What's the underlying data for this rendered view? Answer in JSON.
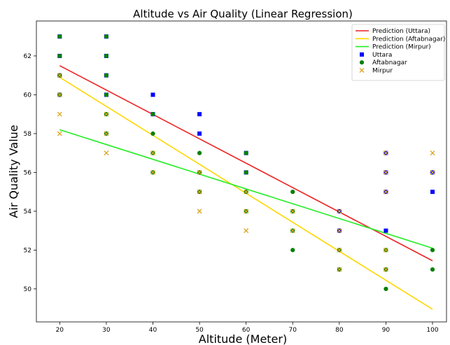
{
  "chart_data": {
    "type": "scatter",
    "title": "Altitude vs Air Quality (Linear Regression)",
    "xlabel": "Altitude (Meter)",
    "ylabel": "Air Quality Value",
    "xlim": [
      15,
      103
    ],
    "ylim": [
      48.3,
      63.8
    ],
    "x_ticks": [
      20,
      30,
      40,
      50,
      60,
      70,
      80,
      90,
      100
    ],
    "y_ticks": [
      50,
      52,
      54,
      56,
      58,
      60,
      62
    ],
    "grid": false,
    "legend_position": "top-right",
    "lines": [
      {
        "name": "Prediction (Uttara)",
        "color": "#ee2222",
        "x": [
          20,
          100
        ],
        "y": [
          61.5,
          51.45
        ]
      },
      {
        "name": "Prediction (Aftabnagar)",
        "color": "#ffd700",
        "x": [
          20,
          100
        ],
        "y": [
          60.9,
          48.95
        ]
      },
      {
        "name": "Prediction (Mirpur)",
        "color": "#22ee22",
        "x": [
          20,
          100
        ],
        "y": [
          58.2,
          52.1
        ]
      }
    ],
    "series": [
      {
        "name": "Uttara",
        "marker": "square",
        "color": "#0000ff",
        "points": [
          [
            20,
            63
          ],
          [
            20,
            62
          ],
          [
            20,
            61
          ],
          [
            20,
            60
          ],
          [
            30,
            63
          ],
          [
            30,
            62
          ],
          [
            30,
            61
          ],
          [
            30,
            60
          ],
          [
            40,
            60
          ],
          [
            40,
            59
          ],
          [
            50,
            59
          ],
          [
            50,
            58
          ],
          [
            60,
            57
          ],
          [
            60,
            56
          ],
          [
            80,
            54
          ],
          [
            80,
            53
          ],
          [
            90,
            57
          ],
          [
            90,
            56
          ],
          [
            90,
            55
          ],
          [
            90,
            53
          ],
          [
            100,
            56
          ],
          [
            100,
            55
          ]
        ]
      },
      {
        "name": "Aftabnagar",
        "marker": "circle",
        "color": "#008000",
        "points": [
          [
            20,
            63
          ],
          [
            20,
            62
          ],
          [
            20,
            61
          ],
          [
            20,
            60
          ],
          [
            30,
            63
          ],
          [
            30,
            62
          ],
          [
            30,
            61
          ],
          [
            30,
            60
          ],
          [
            30,
            59
          ],
          [
            30,
            58
          ],
          [
            40,
            59
          ],
          [
            40,
            58
          ],
          [
            40,
            57
          ],
          [
            40,
            56
          ],
          [
            50,
            57
          ],
          [
            50,
            56
          ],
          [
            50,
            55
          ],
          [
            60,
            57
          ],
          [
            60,
            56
          ],
          [
            60,
            55
          ],
          [
            60,
            54
          ],
          [
            70,
            55
          ],
          [
            70,
            54
          ],
          [
            70,
            53
          ],
          [
            70,
            52
          ],
          [
            80,
            52
          ],
          [
            80,
            51
          ],
          [
            90,
            52
          ],
          [
            90,
            51
          ],
          [
            90,
            50
          ],
          [
            100,
            52
          ],
          [
            100,
            51
          ]
        ]
      },
      {
        "name": "Mirpur",
        "marker": "x",
        "color": "#daa520",
        "points": [
          [
            20,
            61
          ],
          [
            20,
            60
          ],
          [
            20,
            59
          ],
          [
            20,
            58
          ],
          [
            30,
            59
          ],
          [
            30,
            58
          ],
          [
            30,
            57
          ],
          [
            40,
            57
          ],
          [
            40,
            56
          ],
          [
            50,
            56
          ],
          [
            50,
            55
          ],
          [
            50,
            54
          ],
          [
            60,
            55
          ],
          [
            60,
            54
          ],
          [
            60,
            53
          ],
          [
            70,
            54
          ],
          [
            70,
            53
          ],
          [
            80,
            54
          ],
          [
            80,
            53
          ],
          [
            80,
            52
          ],
          [
            80,
            51
          ],
          [
            90,
            57
          ],
          [
            90,
            56
          ],
          [
            90,
            55
          ],
          [
            90,
            52
          ],
          [
            90,
            51
          ],
          [
            100,
            57
          ],
          [
            100,
            56
          ]
        ]
      }
    ]
  }
}
